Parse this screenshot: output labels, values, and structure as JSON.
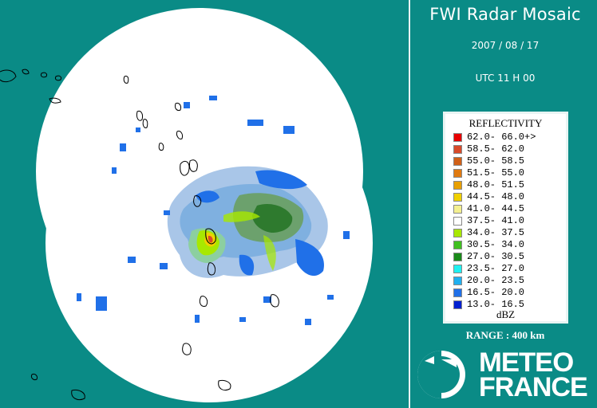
{
  "header": {
    "title": "FWI Radar Mosaic",
    "date": "2007 / 08 / 17",
    "time": "UTC 11 H 00"
  },
  "legend": {
    "title": "REFLECTIVITY",
    "unit": "dBZ",
    "rows": [
      {
        "label": "62.0- 66.0+>",
        "color": "#e80000"
      },
      {
        "label": "58.5- 62.0",
        "color": "#d84a2a"
      },
      {
        "label": "55.0- 58.5",
        "color": "#d06018"
      },
      {
        "label": "51.5- 55.0",
        "color": "#e07a10"
      },
      {
        "label": "48.0- 51.5",
        "color": "#e8a000"
      },
      {
        "label": "44.5- 48.0",
        "color": "#f0d000"
      },
      {
        "label": "41.0- 44.5",
        "color": "#f4f090"
      },
      {
        "label": "37.5- 41.0",
        "color": "#ffffff"
      },
      {
        "label": "34.0- 37.5",
        "color": "#a8e800"
      },
      {
        "label": "30.5- 34.0",
        "color": "#40c020"
      },
      {
        "label": "27.0- 30.5",
        "color": "#1a8a1a"
      },
      {
        "label": "23.5- 27.0",
        "color": "#20f0f0"
      },
      {
        "label": "20.0- 23.5",
        "color": "#20b0f0"
      },
      {
        "label": "16.5- 20.0",
        "color": "#2070e8"
      },
      {
        "label": "13.0- 16.5",
        "color": "#0020d0"
      }
    ]
  },
  "range": "RANGE : 400 km",
  "logo": {
    "line1": "METEO",
    "line2": "FRANCE"
  },
  "colors": {
    "sea": "#0a8b86",
    "coverage": "#ffffff",
    "panel_text": "#ffffff"
  }
}
